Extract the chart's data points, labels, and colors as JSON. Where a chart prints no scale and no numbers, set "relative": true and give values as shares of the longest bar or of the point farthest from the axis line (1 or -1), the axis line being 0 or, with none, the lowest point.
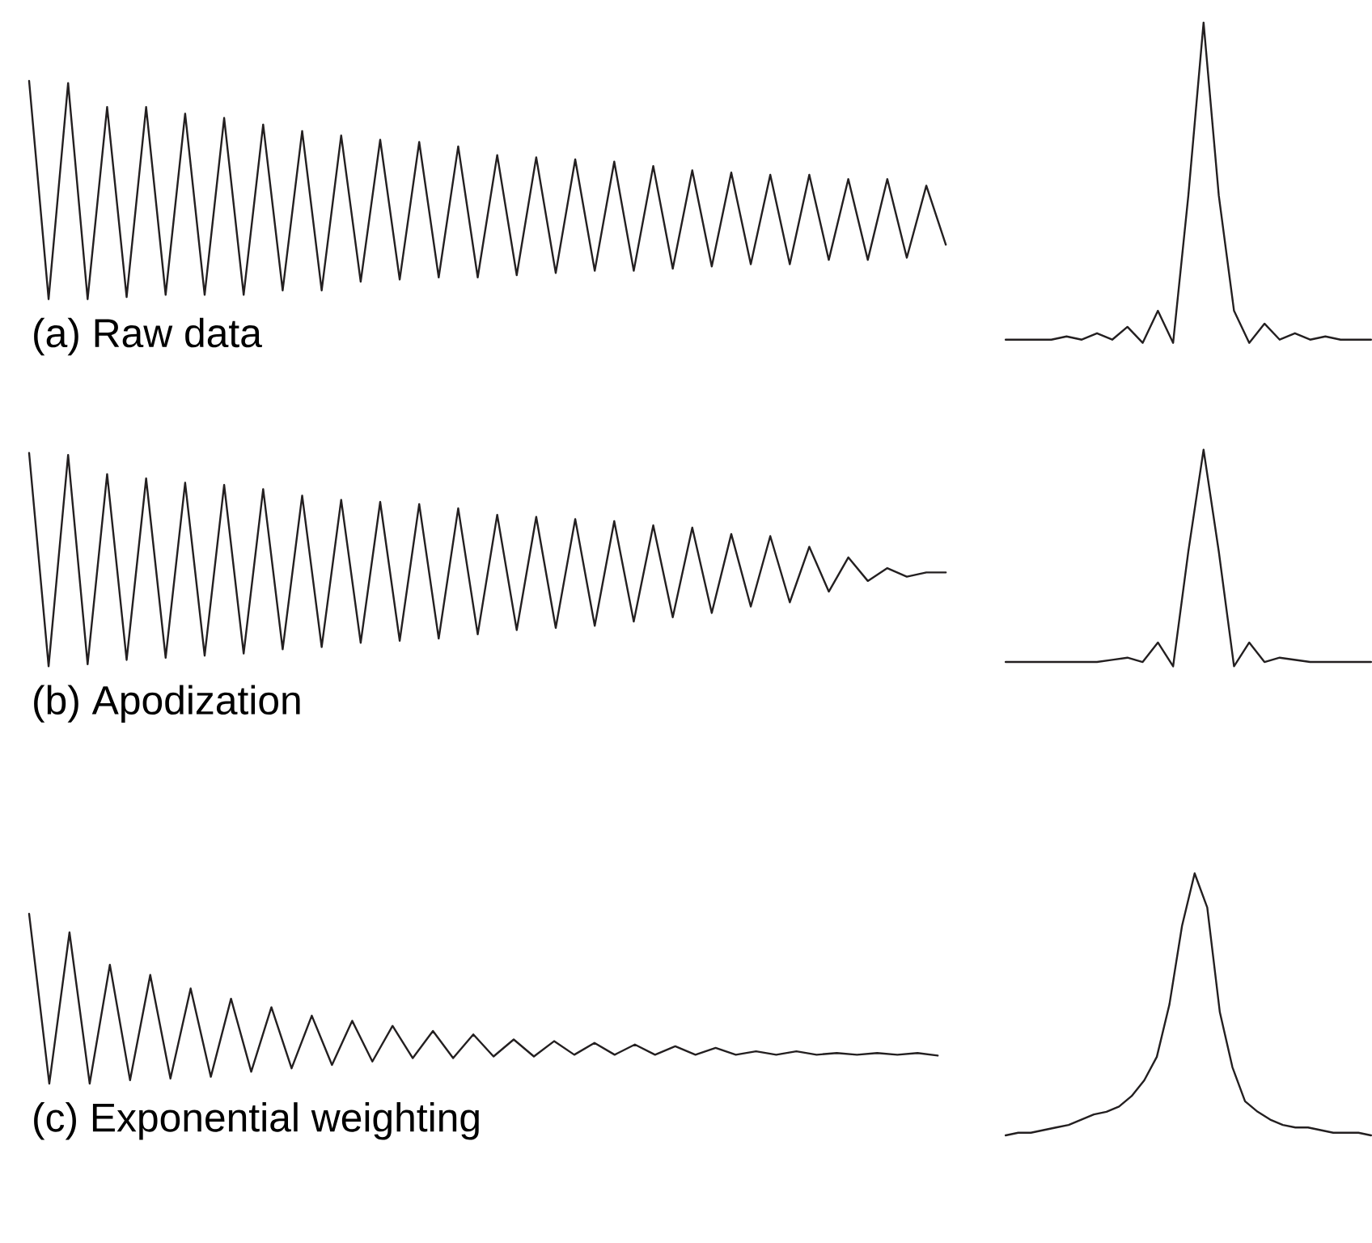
{
  "chart_data": [
    {
      "type": "line",
      "title": "(a) Raw data",
      "relative": true,
      "color": "#231f20",
      "categories": [
        null,
        null,
        null,
        null,
        null,
        null,
        null,
        null,
        null,
        null,
        null,
        null,
        null,
        null,
        null,
        null,
        null,
        null,
        null,
        null,
        null,
        null,
        null,
        null,
        null,
        null,
        null,
        null,
        null,
        null,
        null,
        null,
        null,
        null,
        null,
        null,
        null,
        null,
        null,
        null,
        null,
        null,
        null,
        null,
        null,
        null,
        null,
        null
      ],
      "values": [
        1.0,
        0.0,
        0.99,
        0.0,
        0.88,
        0.01,
        0.88,
        0.02,
        0.85,
        0.02,
        0.83,
        0.02,
        0.8,
        0.04,
        0.77,
        0.04,
        0.75,
        0.08,
        0.73,
        0.09,
        0.72,
        0.1,
        0.7,
        0.1,
        0.66,
        0.11,
        0.65,
        0.12,
        0.64,
        0.13,
        0.63,
        0.13,
        0.61,
        0.14,
        0.59,
        0.15,
        0.58,
        0.16,
        0.57,
        0.16,
        0.57,
        0.18,
        0.55,
        0.18,
        0.55,
        0.19,
        0.52,
        0.25
      ]
    },
    {
      "type": "line",
      "relative": true,
      "color": "#231f20",
      "categories": [
        null,
        null,
        null,
        null,
        null,
        null,
        null,
        null,
        null,
        null,
        null,
        null,
        null,
        null,
        null,
        null,
        null,
        null,
        null,
        null,
        null,
        null,
        null,
        null,
        null
      ],
      "values": [
        0.01,
        0.01,
        0.01,
        0.01,
        0.02,
        0.01,
        0.03,
        0.01,
        0.05,
        0.0,
        0.1,
        0.0,
        0.46,
        1,
        0.46,
        0.1,
        0.0,
        0.06,
        0.01,
        0.03,
        0.01,
        0.02,
        0.01,
        0.01,
        0.01
      ]
    },
    {
      "type": "line",
      "title": "(b) Apodization",
      "relative": true,
      "color": "#231f20",
      "categories": [
        null,
        null,
        null,
        null,
        null,
        null,
        null,
        null,
        null,
        null,
        null,
        null,
        null,
        null,
        null,
        null,
        null,
        null,
        null,
        null,
        null,
        null,
        null,
        null,
        null,
        null,
        null,
        null,
        null,
        null,
        null,
        null,
        null,
        null,
        null,
        null,
        null,
        null,
        null,
        null,
        null,
        null,
        null,
        null,
        null,
        null,
        null,
        null
      ],
      "values": [
        1.0,
        0.0,
        0.99,
        0.01,
        0.9,
        0.03,
        0.88,
        0.04,
        0.86,
        0.05,
        0.85,
        0.06,
        0.83,
        0.08,
        0.8,
        0.09,
        0.78,
        0.11,
        0.77,
        0.12,
        0.76,
        0.13,
        0.74,
        0.15,
        0.71,
        0.17,
        0.7,
        0.18,
        0.69,
        0.19,
        0.68,
        0.21,
        0.66,
        0.23,
        0.65,
        0.25,
        0.62,
        0.28,
        0.61,
        0.3,
        0.56,
        0.35,
        0.51,
        0.4,
        0.46,
        0.42,
        0.44,
        0.44
      ]
    },
    {
      "type": "line",
      "relative": true,
      "color": "#231f20",
      "categories": [
        null,
        null,
        null,
        null,
        null,
        null,
        null,
        null,
        null,
        null,
        null,
        null,
        null,
        null,
        null,
        null,
        null,
        null,
        null,
        null,
        null,
        null,
        null,
        null,
        null
      ],
      "values": [
        0.02,
        0.02,
        0.02,
        0.02,
        0.02,
        0.02,
        0.02,
        0.03,
        0.04,
        0.02,
        0.11,
        0.0,
        0.53,
        1,
        0.53,
        0.0,
        0.11,
        0.02,
        0.04,
        0.03,
        0.02,
        0.02,
        0.02,
        0.02,
        0.02
      ]
    },
    {
      "type": "line",
      "title": "(c) Exponential weighting",
      "relative": true,
      "color": "#231f20",
      "categories": [
        null,
        null,
        null,
        null,
        null,
        null,
        null,
        null,
        null,
        null,
        null,
        null,
        null,
        null,
        null,
        null,
        null,
        null,
        null,
        null,
        null,
        null,
        null,
        null,
        null,
        null,
        null,
        null,
        null,
        null,
        null,
        null,
        null,
        null,
        null,
        null,
        null,
        null,
        null,
        null,
        null,
        null,
        null,
        null,
        null,
        null
      ],
      "values": [
        1.0,
        0.0,
        0.89,
        0.0,
        0.7,
        0.02,
        0.64,
        0.03,
        0.56,
        0.04,
        0.5,
        0.07,
        0.45,
        0.09,
        0.4,
        0.11,
        0.37,
        0.13,
        0.34,
        0.15,
        0.31,
        0.15,
        0.29,
        0.16,
        0.26,
        0.16,
        0.25,
        0.17,
        0.24,
        0.17,
        0.23,
        0.17,
        0.22,
        0.17,
        0.21,
        0.17,
        0.19,
        0.17,
        0.19,
        0.17,
        0.18,
        0.17,
        0.18,
        0.17,
        0.18,
        0.165
      ]
    },
    {
      "type": "line",
      "relative": true,
      "color": "#231f20",
      "categories": [
        null,
        null,
        null,
        null,
        null,
        null,
        null,
        null,
        null,
        null,
        null,
        null,
        null,
        null,
        null,
        null,
        null,
        null,
        null,
        null,
        null,
        null,
        null,
        null,
        null,
        null,
        null,
        null,
        null,
        null
      ],
      "values": [
        0.0,
        0.01,
        0.01,
        0.02,
        0.03,
        0.04,
        0.06,
        0.08,
        0.09,
        0.11,
        0.15,
        0.21,
        0.3,
        0.5,
        0.8,
        1.0,
        0.87,
        0.47,
        0.26,
        0.13,
        0.09,
        0.06,
        0.04,
        0.03,
        0.03,
        0.02,
        0.01,
        0.01,
        0.01,
        0.0
      ]
    }
  ]
}
